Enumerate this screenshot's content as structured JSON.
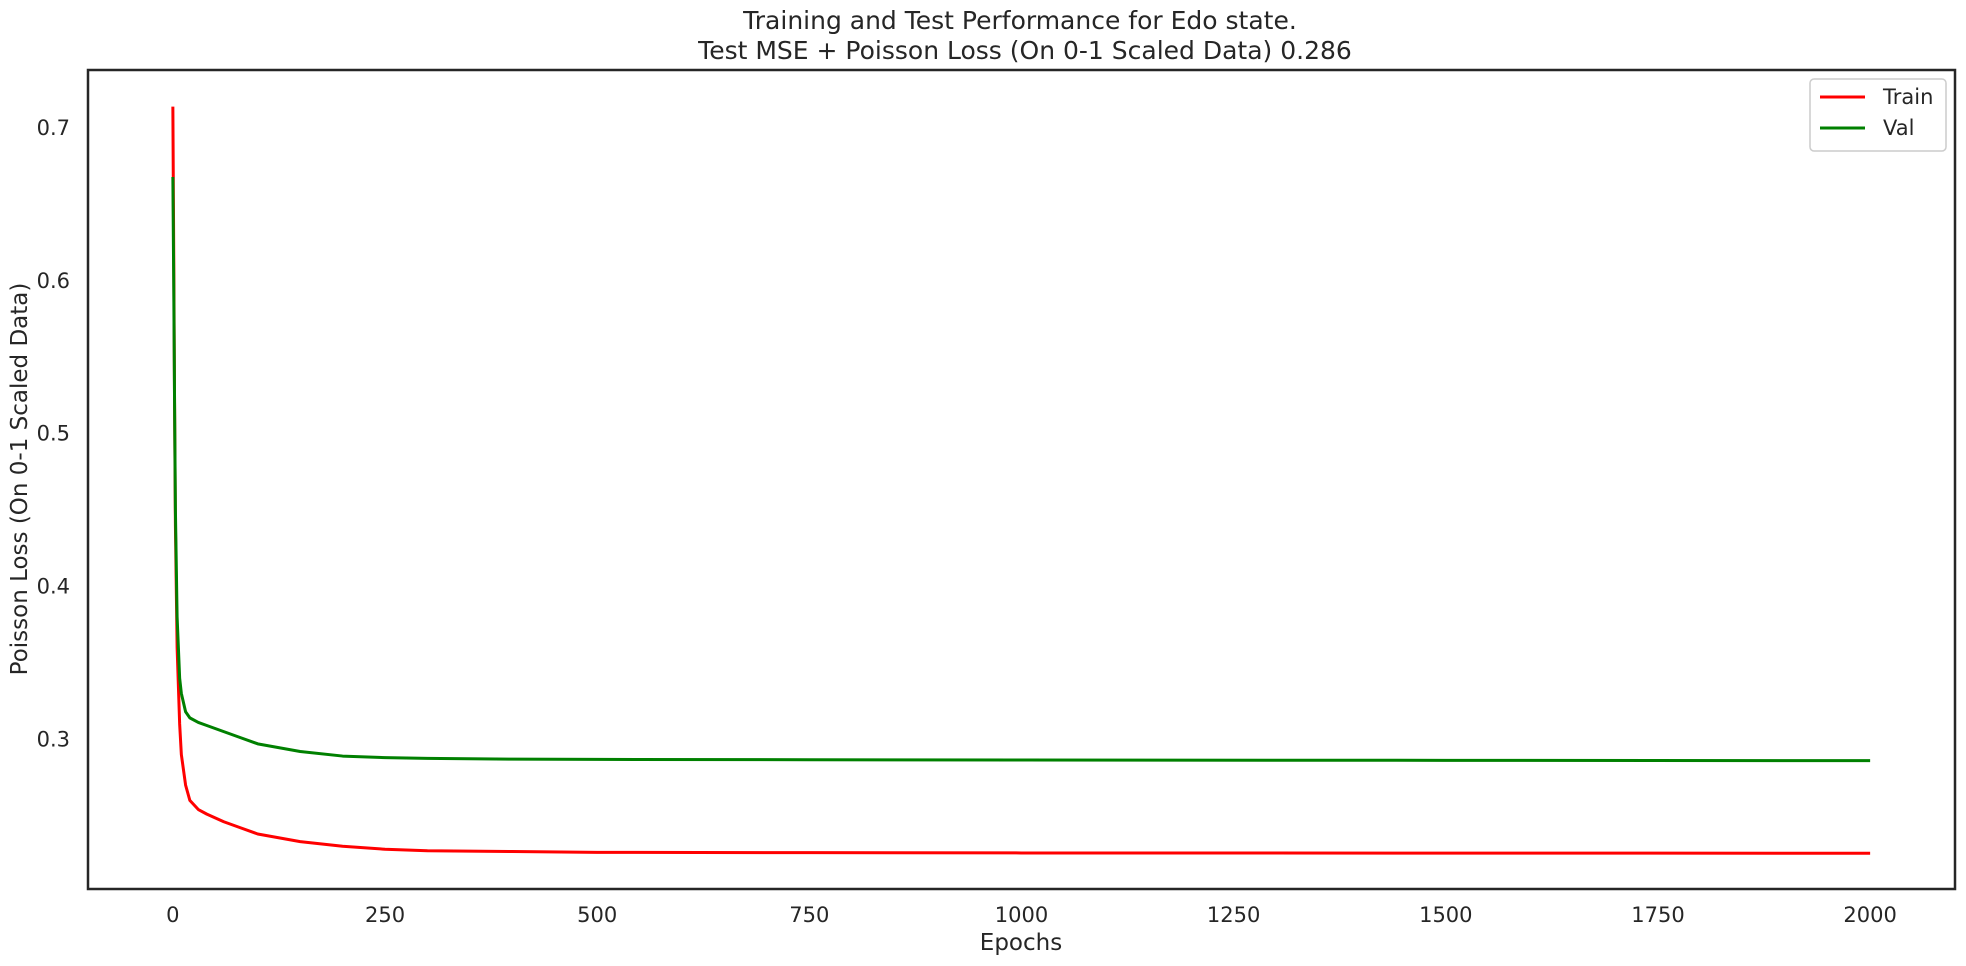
{
  "chart_data": {
    "type": "line",
    "title": "Training and Test Performance for Edo state.",
    "subtitle": "Test MSE + Poisson Loss (On 0-1 Scaled Data) 0.286",
    "xlabel": "Epochs",
    "ylabel": "Poisson Loss (On 0-1 Scaled Data)",
    "xlim": [
      -100,
      2100
    ],
    "ylim": [
      0.202,
      0.738
    ],
    "xticks": [
      0,
      250,
      500,
      750,
      1000,
      1250,
      1500,
      1750,
      2000
    ],
    "yticks": [
      0.3,
      0.4,
      0.5,
      0.6,
      0.7
    ],
    "grid": false,
    "legend_position": "top-right",
    "series": [
      {
        "name": "Train",
        "color": "#ff0000",
        "x": [
          0,
          1,
          2,
          3,
          5,
          8,
          10,
          15,
          20,
          30,
          40,
          60,
          80,
          100,
          150,
          200,
          250,
          300,
          400,
          500,
          750,
          1000,
          1500,
          2000
        ],
        "y": [
          0.714,
          0.62,
          0.52,
          0.44,
          0.36,
          0.31,
          0.29,
          0.27,
          0.26,
          0.254,
          0.251,
          0.246,
          0.242,
          0.238,
          0.233,
          0.23,
          0.228,
          0.227,
          0.2265,
          0.226,
          0.2258,
          0.2256,
          0.2255,
          0.2254
        ]
      },
      {
        "name": "Val",
        "color": "#008000",
        "x": [
          0,
          1,
          2,
          3,
          5,
          8,
          10,
          15,
          20,
          30,
          40,
          60,
          80,
          100,
          150,
          200,
          250,
          300,
          400,
          500,
          750,
          1000,
          1500,
          2000
        ],
        "y": [
          0.668,
          0.6,
          0.52,
          0.45,
          0.38,
          0.34,
          0.33,
          0.318,
          0.314,
          0.311,
          0.309,
          0.305,
          0.301,
          0.297,
          0.292,
          0.289,
          0.288,
          0.2875,
          0.287,
          0.2868,
          0.2866,
          0.2864,
          0.2862,
          0.286
        ]
      }
    ]
  }
}
